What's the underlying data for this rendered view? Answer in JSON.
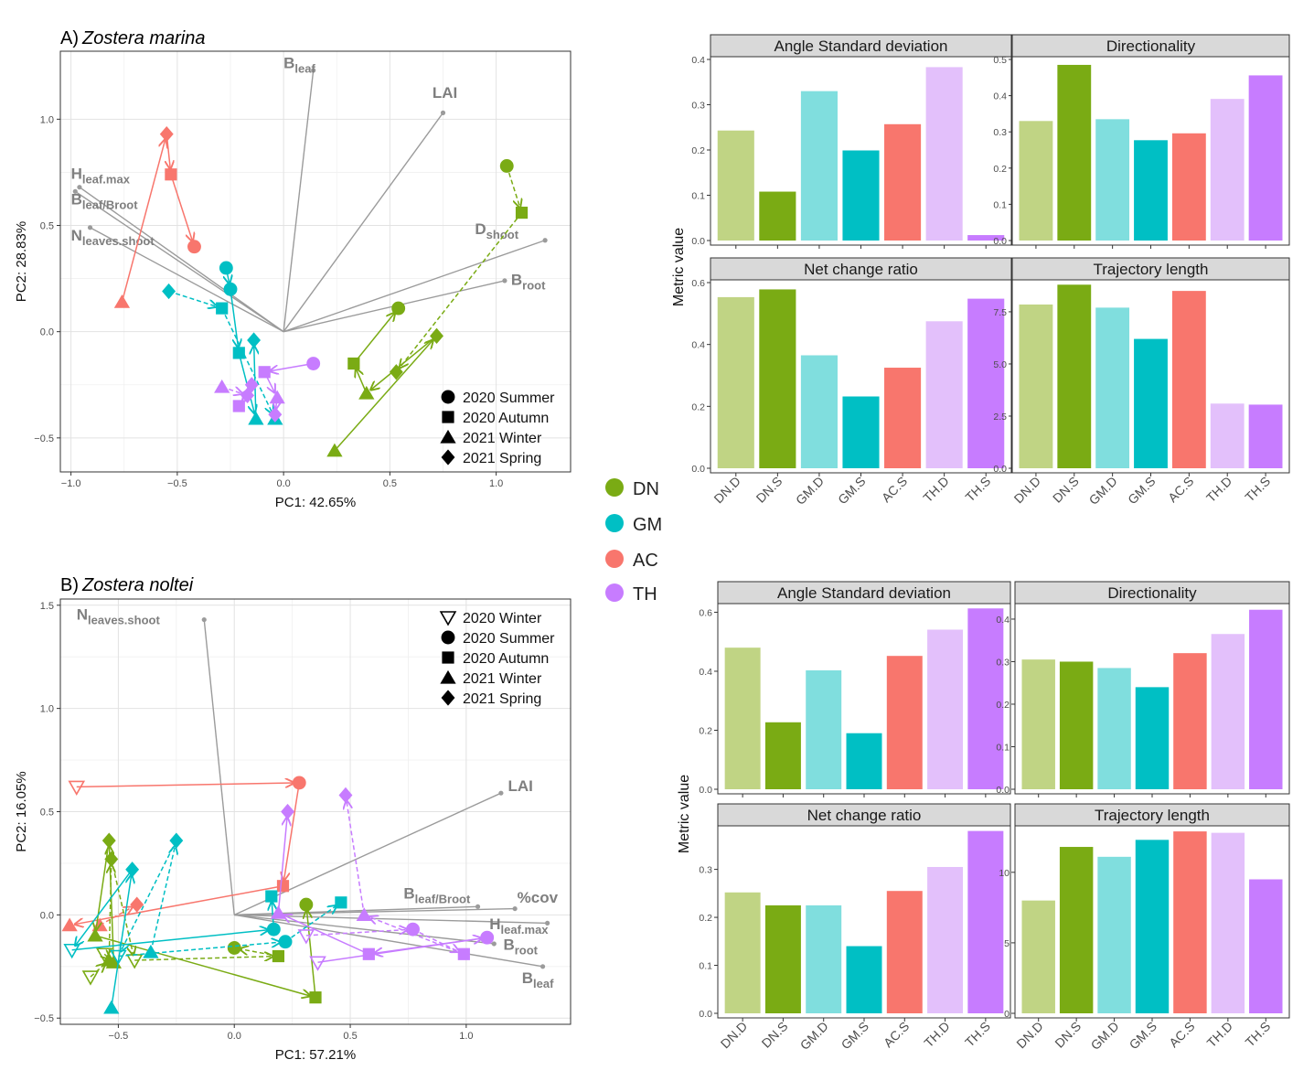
{
  "colors": {
    "DN.D": "#c0d484",
    "DN.S": "#7aab14",
    "GM.D": "#80dede",
    "GM.S": "#00bfc4",
    "AC.S": "#f8766d",
    "TH.D": "#e3c0fb",
    "TH.S": "#c77cff",
    "DN": "#7aab14",
    "GM": "#00bfc4",
    "AC": "#f8766d",
    "TH": "#c77cff",
    "loading": "#9b9b9b",
    "loading_label": "#7f7f7f"
  },
  "site_legend": [
    {
      "label": "DN",
      "key": "DN"
    },
    {
      "label": "GM",
      "key": "GM"
    },
    {
      "label": "AC",
      "key": "AC"
    },
    {
      "label": "TH",
      "key": "TH"
    }
  ],
  "chart_data": [
    {
      "type": "scatter",
      "panel": "A)",
      "title": "Zostera marina",
      "xlabel": "PC1: 42.65%",
      "ylabel": "PC2: 28.83%",
      "xlim": [
        -1.05,
        1.35
      ],
      "ylim": [
        -0.66,
        1.32
      ],
      "xticks": [
        -1.0,
        -0.5,
        0.0,
        0.5,
        1.0
      ],
      "yticks": [
        -0.5,
        0.0,
        0.5,
        1.0
      ],
      "xticklabels": [
        "−1.0",
        "−0.5",
        "0.0",
        "0.5",
        "1.0"
      ],
      "yticklabels": [
        "−0.5",
        "0.0",
        "0.5",
        "1.0"
      ],
      "legend": [
        {
          "shape": "circle",
          "label": "2020 Summer"
        },
        {
          "shape": "square",
          "label": "2020 Autumn"
        },
        {
          "shape": "triangle",
          "label": "2021 Winter"
        },
        {
          "shape": "diamond",
          "label": "2021 Spring"
        }
      ],
      "loadings": [
        {
          "main": "B",
          "sub": "leaf",
          "x": 0.14,
          "y": 1.23,
          "lx": 0.0,
          "ly": 1.24
        },
        {
          "main": "LAI",
          "sub": "",
          "x": 0.75,
          "y": 1.03,
          "lx": 0.7,
          "ly": 1.1
        },
        {
          "main": "H",
          "sub": "leaf.max",
          "x": -0.96,
          "y": 0.68,
          "lx": -1.0,
          "ly": 0.72
        },
        {
          "main": "B",
          "sub": "leaf/Broot",
          "x": -0.98,
          "y": 0.66,
          "lx": -1.0,
          "ly": 0.6
        },
        {
          "main": "N",
          "sub": "leaves.shoot",
          "x": -0.91,
          "y": 0.49,
          "lx": -1.0,
          "ly": 0.43
        },
        {
          "main": "D",
          "sub": "shoot",
          "x": 1.23,
          "y": 0.43,
          "lx": 0.9,
          "ly": 0.46
        },
        {
          "main": "B",
          "sub": "root",
          "x": 1.04,
          "y": 0.24,
          "lx": 1.07,
          "ly": 0.22
        }
      ],
      "trajectories": [
        {
          "site": "AC",
          "line": "solid",
          "points": [
            {
              "shape": "triangle",
              "x": -0.76,
              "y": 0.14
            },
            {
              "shape": "diamond",
              "x": -0.55,
              "y": 0.93
            },
            {
              "shape": "square",
              "x": -0.53,
              "y": 0.74
            },
            {
              "shape": "circle",
              "x": -0.42,
              "y": 0.4
            }
          ]
        },
        {
          "site": "DN",
          "line": "solid",
          "points": [
            {
              "shape": "triangle",
              "x": 0.24,
              "y": -0.56
            },
            {
              "shape": "diamond",
              "x": 0.72,
              "y": -0.02
            },
            {
              "shape": "triangle",
              "x": 0.39,
              "y": -0.29
            },
            {
              "shape": "square",
              "x": 0.33,
              "y": -0.15
            },
            {
              "shape": "circle",
              "x": 0.54,
              "y": 0.11
            }
          ]
        },
        {
          "site": "DN",
          "line": "dashed",
          "points": [
            {
              "shape": "circle",
              "x": 1.05,
              "y": 0.78
            },
            {
              "shape": "square",
              "x": 1.12,
              "y": 0.56
            },
            {
              "shape": "diamond",
              "x": 0.53,
              "y": -0.19
            }
          ]
        },
        {
          "site": "GM",
          "line": "solid",
          "points": [
            {
              "shape": "circle",
              "x": -0.27,
              "y": 0.3
            },
            {
              "shape": "circle",
              "x": -0.25,
              "y": 0.2
            },
            {
              "shape": "square",
              "x": -0.21,
              "y": -0.1
            },
            {
              "shape": "triangle",
              "x": -0.13,
              "y": -0.41
            },
            {
              "shape": "diamond",
              "x": -0.14,
              "y": -0.04
            }
          ]
        },
        {
          "site": "GM",
          "line": "dashed",
          "points": [
            {
              "shape": "diamond",
              "x": -0.54,
              "y": 0.19
            },
            {
              "shape": "square",
              "x": -0.29,
              "y": 0.11
            },
            {
              "shape": "triangle",
              "x": -0.04,
              "y": -0.41
            }
          ]
        },
        {
          "site": "TH",
          "line": "solid",
          "points": [
            {
              "shape": "circle",
              "x": 0.14,
              "y": -0.15
            },
            {
              "shape": "square",
              "x": -0.09,
              "y": -0.19
            },
            {
              "shape": "triangle",
              "x": -0.03,
              "y": -0.31
            },
            {
              "shape": "diamond",
              "x": -0.04,
              "y": -0.39
            }
          ]
        },
        {
          "site": "TH",
          "line": "dashed",
          "points": [
            {
              "shape": "triangle",
              "x": -0.29,
              "y": -0.26
            },
            {
              "shape": "diamond",
              "x": -0.17,
              "y": -0.3
            },
            {
              "shape": "square",
              "x": -0.21,
              "y": -0.35
            },
            {
              "shape": "diamond",
              "x": -0.15,
              "y": -0.25
            }
          ]
        }
      ]
    },
    {
      "type": "scatter",
      "panel": "B)",
      "title": "Zostera noltei",
      "xlabel": "PC1: 57.21%",
      "ylabel": "PC2: 16.05%",
      "xlim": [
        -0.75,
        1.45
      ],
      "ylim": [
        -0.53,
        1.53
      ],
      "xticks": [
        -0.5,
        0.0,
        0.5,
        1.0
      ],
      "yticks": [
        -0.5,
        0.0,
        0.5,
        1.0,
        1.5
      ],
      "xticklabels": [
        "−0.5",
        "0.0",
        "0.5",
        "1.0"
      ],
      "yticklabels": [
        "−0.5",
        "0.0",
        "0.5",
        "1.0",
        "1.5"
      ],
      "legend": [
        {
          "shape": "tri-open",
          "label": "2020 Winter"
        },
        {
          "shape": "circle",
          "label": "2020 Summer"
        },
        {
          "shape": "square",
          "label": "2020 Autumn"
        },
        {
          "shape": "triangle",
          "label": "2021 Winter"
        },
        {
          "shape": "diamond",
          "label": "2021 Spring"
        }
      ],
      "loadings": [
        {
          "main": "N",
          "sub": "leaves.shoot",
          "x": -0.13,
          "y": 1.43,
          "lx": -0.68,
          "ly": 1.43
        },
        {
          "main": "LAI",
          "sub": "",
          "x": 1.15,
          "y": 0.59,
          "lx": 1.18,
          "ly": 0.6
        },
        {
          "main": "B",
          "sub": "leaf/Broot",
          "x": 1.05,
          "y": 0.04,
          "lx": 0.73,
          "ly": 0.08
        },
        {
          "main": "%cov",
          "sub": "",
          "x": 1.21,
          "y": 0.03,
          "lx": 1.22,
          "ly": 0.06
        },
        {
          "main": "H",
          "sub": "leaf.max",
          "x": 1.35,
          "y": -0.04,
          "lx": 1.1,
          "ly": -0.07
        },
        {
          "main": "B",
          "sub": "root",
          "x": 1.12,
          "y": -0.14,
          "lx": 1.16,
          "ly": -0.17
        },
        {
          "main": "B",
          "sub": "leaf",
          "x": 1.33,
          "y": -0.25,
          "lx": 1.24,
          "ly": -0.33
        }
      ],
      "trajectories": [
        {
          "site": "AC",
          "line": "solid",
          "points": [
            {
              "shape": "tri-open",
              "x": -0.68,
              "y": 0.62
            },
            {
              "shape": "circle",
              "x": 0.28,
              "y": 0.64
            },
            {
              "shape": "square",
              "x": 0.21,
              "y": 0.14
            },
            {
              "shape": "triangle",
              "x": -0.71,
              "y": -0.05
            }
          ]
        },
        {
          "site": "AC",
          "line": "dashed",
          "points": [
            {
              "shape": "triangle",
              "x": -0.58,
              "y": -0.05
            },
            {
              "shape": "diamond",
              "x": -0.42,
              "y": 0.05
            }
          ]
        },
        {
          "site": "DN",
          "line": "solid",
          "points": [
            {
              "shape": "tri-open",
              "x": -0.56,
              "y": -0.19
            },
            {
              "shape": "triangle",
              "x": -0.52,
              "y": -0.23
            },
            {
              "shape": "diamond",
              "x": -0.54,
              "y": 0.36
            },
            {
              "shape": "triangle",
              "x": -0.6,
              "y": -0.1
            },
            {
              "shape": "square",
              "x": 0.35,
              "y": -0.4
            },
            {
              "shape": "circle",
              "x": 0.31,
              "y": 0.05
            }
          ]
        },
        {
          "site": "DN",
          "line": "dashed",
          "points": [
            {
              "shape": "tri-open",
              "x": -0.62,
              "y": -0.3
            },
            {
              "shape": "triangle",
              "x": -0.54,
              "y": -0.22
            },
            {
              "shape": "diamond",
              "x": -0.53,
              "y": 0.27
            },
            {
              "shape": "tri-open",
              "x": -0.43,
              "y": -0.22
            },
            {
              "shape": "square",
              "x": 0.19,
              "y": -0.2
            },
            {
              "shape": "circle",
              "x": 0.0,
              "y": -0.16
            }
          ]
        },
        {
          "site": "GM",
          "line": "solid",
          "points": [
            {
              "shape": "triangle",
              "x": -0.53,
              "y": -0.45
            },
            {
              "shape": "diamond",
              "x": -0.44,
              "y": 0.22
            },
            {
              "shape": "tri-open",
              "x": -0.7,
              "y": -0.17
            },
            {
              "shape": "circle",
              "x": 0.17,
              "y": -0.07
            },
            {
              "shape": "square",
              "x": 0.16,
              "y": 0.09
            }
          ]
        },
        {
          "site": "GM",
          "line": "dashed",
          "points": [
            {
              "shape": "triangle",
              "x": -0.36,
              "y": -0.18
            },
            {
              "shape": "diamond",
              "x": -0.25,
              "y": 0.36
            },
            {
              "shape": "tri-open",
              "x": -0.5,
              "y": -0.2
            },
            {
              "shape": "circle",
              "x": 0.22,
              "y": -0.13
            },
            {
              "shape": "square",
              "x": 0.46,
              "y": 0.06
            }
          ]
        },
        {
          "site": "TH",
          "line": "solid",
          "points": [
            {
              "shape": "tri-open",
              "x": 0.36,
              "y": -0.23
            },
            {
              "shape": "circle",
              "x": 1.09,
              "y": -0.11
            },
            {
              "shape": "square",
              "x": 0.58,
              "y": -0.19
            },
            {
              "shape": "triangle",
              "x": 0.19,
              "y": 0.01
            },
            {
              "shape": "diamond",
              "x": 0.23,
              "y": 0.5
            }
          ]
        },
        {
          "site": "TH",
          "line": "dashed",
          "points": [
            {
              "shape": "tri-open",
              "x": 0.31,
              "y": -0.1
            },
            {
              "shape": "circle",
              "x": 0.77,
              "y": -0.07
            },
            {
              "shape": "square",
              "x": 0.99,
              "y": -0.19
            },
            {
              "shape": "triangle",
              "x": 0.56,
              "y": 0.0
            },
            {
              "shape": "diamond",
              "x": 0.48,
              "y": 0.58
            }
          ]
        }
      ]
    },
    {
      "type": "bar",
      "group": "Zostera marina",
      "ylabel": "Metric value",
      "categories": [
        "DN.D",
        "DN.S",
        "GM.D",
        "GM.S",
        "AC.S",
        "TH.D",
        "TH.S"
      ],
      "panels": [
        {
          "title": "Angle Standard deviation",
          "values": [
            0.243,
            0.108,
            0.33,
            0.199,
            0.257,
            0.383,
            0.012
          ],
          "ylim": [
            0,
            0.4
          ],
          "yticks": [
            0,
            0.1,
            0.2,
            0.3,
            0.4
          ],
          "yticklabels": [
            "0.0",
            "0.1",
            "0.2",
            "0.3",
            "0.4"
          ]
        },
        {
          "title": "Directionality",
          "values": [
            0.33,
            0.485,
            0.335,
            0.277,
            0.296,
            0.391,
            0.456
          ],
          "ylim": [
            0,
            0.5
          ],
          "yticks": [
            0,
            0.1,
            0.2,
            0.3,
            0.4,
            0.5
          ],
          "yticklabels": [
            "0.0",
            "0.1",
            "0.2",
            "0.3",
            "0.4",
            "0.5"
          ]
        },
        {
          "title": "Net change ratio",
          "values": [
            0.553,
            0.578,
            0.365,
            0.232,
            0.325,
            0.475,
            0.548
          ],
          "ylim": [
            0,
            0.6
          ],
          "yticks": [
            0,
            0.2,
            0.4,
            0.6
          ],
          "yticklabels": [
            "0.0",
            "0.2",
            "0.4",
            "0.6"
          ]
        },
        {
          "title": "Trajectory length",
          "values": [
            7.85,
            8.8,
            7.7,
            6.2,
            8.5,
            3.1,
            3.05
          ],
          "ylim": [
            0,
            8.9
          ],
          "yticks": [
            0,
            2.5,
            5,
            7.5
          ],
          "yticklabels": [
            "0.0",
            "2.5",
            "5.0",
            "7.5"
          ]
        }
      ]
    },
    {
      "type": "bar",
      "group": "Zostera noltei",
      "ylabel": "Metric value",
      "categories": [
        "DN.D",
        "DN.S",
        "GM.D",
        "GM.S",
        "AC.S",
        "TH.D",
        "TH.S"
      ],
      "panels": [
        {
          "title": "Angle Standard deviation",
          "values": [
            0.48,
            0.227,
            0.403,
            0.19,
            0.452,
            0.541,
            0.613
          ],
          "ylim": [
            0,
            0.62
          ],
          "yticks": [
            0,
            0.2,
            0.4,
            0.6
          ],
          "yticklabels": [
            "0.0",
            "0.2",
            "0.4",
            "0.6"
          ]
        },
        {
          "title": "Directionality",
          "values": [
            0.305,
            0.3,
            0.285,
            0.24,
            0.32,
            0.365,
            0.422
          ],
          "ylim": [
            0,
            0.43
          ],
          "yticks": [
            0,
            0.1,
            0.2,
            0.3,
            0.4
          ],
          "yticklabels": [
            "0.0",
            "0.1",
            "0.2",
            "0.3",
            "0.4"
          ]
        },
        {
          "title": "Net change ratio",
          "values": [
            0.252,
            0.225,
            0.225,
            0.14,
            0.255,
            0.305,
            0.38
          ],
          "ylim": [
            0,
            0.385
          ],
          "yticks": [
            0,
            0.1,
            0.2,
            0.3
          ],
          "yticklabels": [
            "0.0",
            "0.1",
            "0.2",
            "0.3"
          ]
        },
        {
          "title": "Trajectory length",
          "values": [
            8.0,
            11.8,
            11.1,
            12.3,
            12.9,
            12.8,
            9.5
          ],
          "ylim": [
            0,
            13.1
          ],
          "yticks": [
            0,
            5,
            10
          ],
          "yticklabels": [
            "0",
            "5",
            "10"
          ]
        }
      ]
    }
  ]
}
